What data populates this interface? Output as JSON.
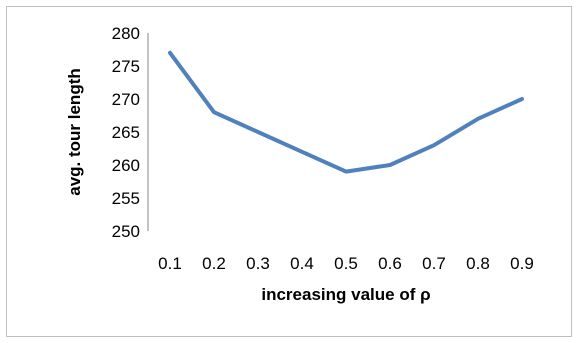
{
  "chart_data": {
    "type": "line",
    "title": "",
    "xlabel": "increasing value of ρ",
    "ylabel": "avg. tour length",
    "categories": [
      "0.1",
      "0.2",
      "0.3",
      "0.4",
      "0.5",
      "0.6",
      "0.7",
      "0.8",
      "0.9"
    ],
    "series": [
      {
        "values": [
          277,
          268,
          265,
          262,
          259,
          260,
          263,
          267,
          270
        ]
      }
    ],
    "ylim": [
      250,
      280
    ],
    "yticks": [
      "250",
      "255",
      "260",
      "265",
      "270",
      "275",
      "280"
    ],
    "grid": false,
    "legend": "none",
    "line_color": "#4f81bd"
  }
}
